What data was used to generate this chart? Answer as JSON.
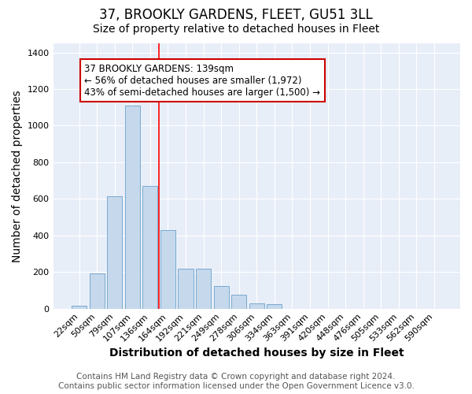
{
  "title": "37, BROOKLY GARDENS, FLEET, GU51 3LL",
  "subtitle": "Size of property relative to detached houses in Fleet",
  "xlabel": "Distribution of detached houses by size in Fleet",
  "ylabel": "Number of detached properties",
  "categories": [
    "22sqm",
    "50sqm",
    "79sqm",
    "107sqm",
    "136sqm",
    "164sqm",
    "192sqm",
    "221sqm",
    "249sqm",
    "278sqm",
    "306sqm",
    "334sqm",
    "363sqm",
    "391sqm",
    "420sqm",
    "448sqm",
    "476sqm",
    "505sqm",
    "533sqm",
    "562sqm",
    "590sqm"
  ],
  "values": [
    15,
    190,
    615,
    1110,
    670,
    430,
    220,
    220,
    125,
    75,
    30,
    22,
    0,
    0,
    0,
    0,
    0,
    0,
    0,
    0,
    0
  ],
  "bar_color": "#c5d8ec",
  "bar_edge_color": "#7aaacf",
  "red_line_x": 4.5,
  "annotation_text": "37 BROOKLY GARDENS: 139sqm\n← 56% of detached houses are smaller (1,972)\n43% of semi-detached houses are larger (1,500) →",
  "annotation_box_color": "#ffffff",
  "annotation_box_edge_color": "#cc0000",
  "footer_line1": "Contains HM Land Registry data © Crown copyright and database right 2024.",
  "footer_line2": "Contains public sector information licensed under the Open Government Licence v3.0.",
  "ylim": [
    0,
    1450
  ],
  "background_color": "#ffffff",
  "plot_bg_color": "#e8eef8",
  "grid_color": "#ffffff",
  "title_fontsize": 12,
  "subtitle_fontsize": 10,
  "axis_label_fontsize": 10,
  "tick_fontsize": 8,
  "footer_fontsize": 7.5,
  "bar_width": 0.85
}
